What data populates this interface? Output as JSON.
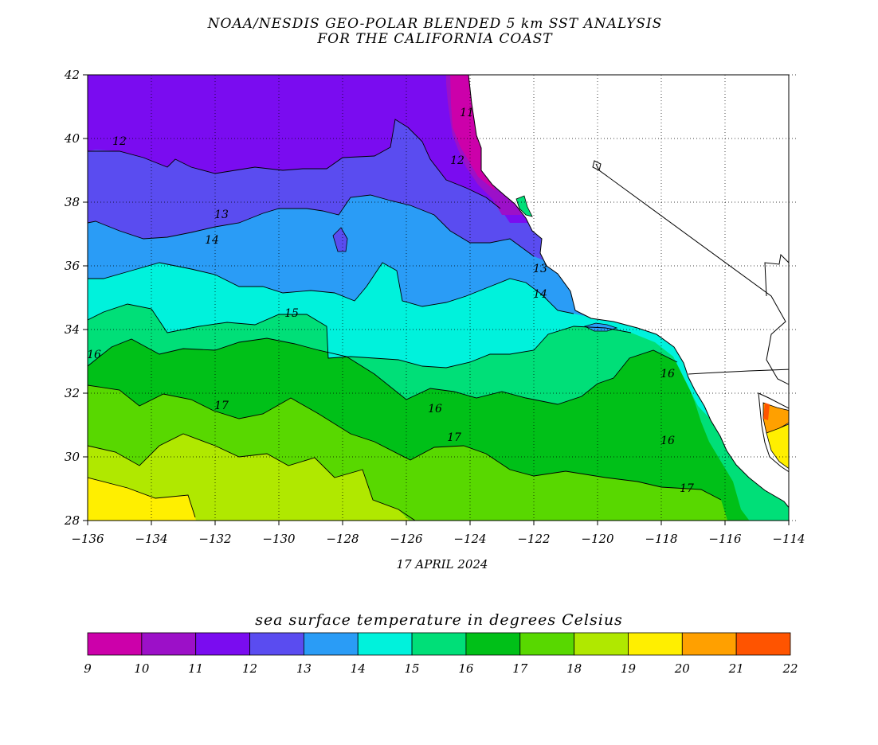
{
  "title": {
    "line1": "NOAA/NESDIS GEO-POLAR BLENDED 5 km SST ANALYSIS",
    "line2": "FOR THE CALIFORNIA COAST"
  },
  "date": "17 APRIL 2024",
  "colorbar": {
    "title": "sea surface temperature in degrees Celsius",
    "ticks": [
      "9",
      "10",
      "11",
      "12",
      "13",
      "14",
      "15",
      "16",
      "17",
      "18",
      "19",
      "20",
      "21",
      "22"
    ],
    "colors": [
      "#cc00aa",
      "#9c10c8",
      "#7a0cf0",
      "#5a4cf0",
      "#2a9cf6",
      "#00f2dc",
      "#00df78",
      "#00c018",
      "#58d800",
      "#b0e800",
      "#ffef00",
      "#ffa000",
      "#ff5400"
    ]
  },
  "map": {
    "lon_labels": [
      "−136",
      "−134",
      "−132",
      "−130",
      "−128",
      "−126",
      "−124",
      "−122",
      "−120",
      "−118",
      "−116",
      "−114"
    ],
    "lat_labels": [
      "42",
      "40",
      "38",
      "36",
      "34",
      "32",
      "30",
      "28"
    ],
    "lon_range": [
      -136,
      -114
    ],
    "lat_range": [
      28,
      42
    ],
    "land_color": "#ffffff",
    "grid": "dotted",
    "contour_labels": [
      {
        "text": "11",
        "lon": -124.1,
        "lat": 40.7
      },
      {
        "text": "12",
        "lon": -135.0,
        "lat": 39.8
      },
      {
        "text": "12",
        "lon": -124.4,
        "lat": 39.2
      },
      {
        "text": "13",
        "lon": -131.8,
        "lat": 37.5
      },
      {
        "text": "13",
        "lon": -121.8,
        "lat": 35.8
      },
      {
        "text": "14",
        "lon": -132.1,
        "lat": 36.7
      },
      {
        "text": "14",
        "lon": -121.8,
        "lat": 35.0
      },
      {
        "text": "15",
        "lon": -129.6,
        "lat": 34.4
      },
      {
        "text": "16",
        "lon": -135.8,
        "lat": 33.1
      },
      {
        "text": "16",
        "lon": -125.1,
        "lat": 31.4
      },
      {
        "text": "16",
        "lon": -117.8,
        "lat": 32.5
      },
      {
        "text": "16",
        "lon": -117.8,
        "lat": 30.4
      },
      {
        "text": "17",
        "lon": -131.8,
        "lat": 31.5
      },
      {
        "text": "17",
        "lon": -124.5,
        "lat": 30.5
      },
      {
        "text": "17",
        "lon": -117.2,
        "lat": 28.9
      }
    ]
  }
}
